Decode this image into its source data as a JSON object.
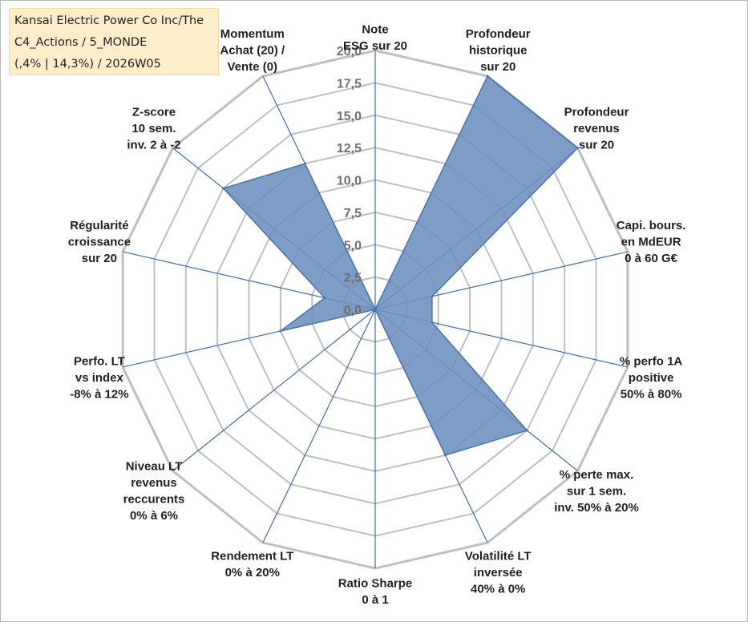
{
  "title_lines": [
    "Kansai Electric Power Co Inc/The",
    "C4_Actions / 5_MONDE",
    "(,4% | 14,3%) / 2026W05"
  ],
  "chart_data": {
    "type": "radar",
    "title": "Kansai Electric Power Co Inc/The C4_Actions / 5_MONDE (,4% | 14,3%) / 2026W05",
    "rlim": [
      0,
      20
    ],
    "rticks": [
      0,
      2.5,
      5,
      7.5,
      10,
      12.5,
      15,
      17.5,
      20
    ],
    "rtick_labels": [
      "0,0",
      "2,5",
      "5,0",
      "7,5",
      "10,0",
      "12,5",
      "15,0",
      "17,5",
      "20,0"
    ],
    "grid": true,
    "axes": [
      {
        "label": [
          "Note",
          "ESG sur 20"
        ],
        "value": 0
      },
      {
        "label": [
          "Profondeur",
          "historique",
          "sur 20"
        ],
        "value": 20
      },
      {
        "label": [
          "Profondeur",
          "revenus",
          "sur 20"
        ],
        "value": 20
      },
      {
        "label": [
          "Capi. bours.",
          "en MdEUR",
          "0 à 60 G€"
        ],
        "value": 4.5
      },
      {
        "label": [
          "% perfo 1A",
          "positive",
          "50% à 80%"
        ],
        "value": 4.5
      },
      {
        "label": [
          "% perte max.",
          "sur 1 sem.",
          "inv. 50% à 20%"
        ],
        "value": 15
      },
      {
        "label": [
          "Volatilité LT",
          "inversée",
          "40% à 0%"
        ],
        "value": 12.5
      },
      {
        "label": [
          "Ratio Sharpe",
          "0 à 1"
        ],
        "value": 0
      },
      {
        "label": [
          "Rendement LT",
          "0% à 20%"
        ],
        "value": 0
      },
      {
        "label": [
          "Niveau LT",
          "revenus",
          "reccurents",
          "0% à 6%"
        ],
        "value": 0
      },
      {
        "label": [
          "Perfo. LT",
          "vs index",
          "-8% à 12%"
        ],
        "value": 7.5
      },
      {
        "label": [
          "Régularité",
          "croissance",
          "sur 20"
        ],
        "value": 4
      },
      {
        "label": [
          "Z-score",
          "10 sem.",
          "inv. 2 à -2"
        ],
        "value": 15
      },
      {
        "label": [
          "Momentum",
          "Achat (20) /",
          "Vente (0)"
        ],
        "value": 12.5
      }
    ],
    "series": [
      {
        "color": "#6b8fbf",
        "edge_color": "#4a72ad"
      }
    ],
    "colors": {
      "grid": "#bfbfbf",
      "spoke": "#3f6db1",
      "tick": "#6f6f6f",
      "title_box": "#fdeec9"
    }
  }
}
